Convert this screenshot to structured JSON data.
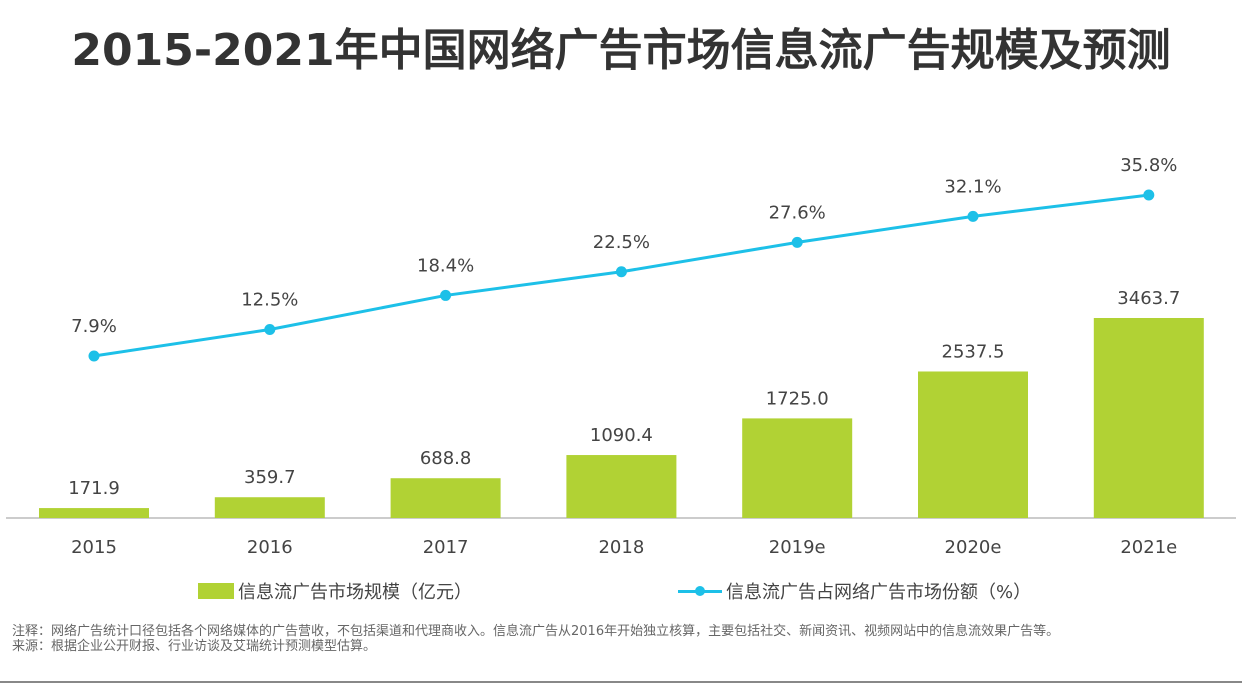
{
  "title": "2015-2021年中国网络广告市场信息流广告规模及预测",
  "chart_data": {
    "type": "bar+line",
    "title": "2015-2021年中国网络广告市场信息流广告规模及预测",
    "categories": [
      "2015",
      "2016",
      "2017",
      "2018",
      "2019e",
      "2020e",
      "2021e"
    ],
    "series": [
      {
        "name": "信息流广告市场规模（亿元）",
        "type": "bar",
        "color": "#b1d234",
        "values": [
          171.9,
          359.7,
          688.8,
          1090.4,
          1725.0,
          2537.5,
          3463.7
        ],
        "labels": [
          "171.9",
          "359.7",
          "688.8",
          "1090.4",
          "1725.0",
          "2537.5",
          "3463.7"
        ]
      },
      {
        "name": "信息流广告占网络广告市场份额（%）",
        "type": "line",
        "color": "#1dc0e8",
        "values": [
          7.9,
          12.5,
          18.4,
          22.5,
          27.6,
          32.1,
          35.8
        ],
        "labels": [
          "7.9%",
          "12.5%",
          "18.4%",
          "22.5%",
          "27.6%",
          "32.1%",
          "35.8%"
        ]
      }
    ],
    "grid": false,
    "legend": "bottom"
  },
  "notes": {
    "note": "注释：网络广告统计口径包括各个网络媒体的广告营收，不包括渠道和代理商收入。信息流广告从2016年开始独立核算，主要包括社交、新闻资讯、视频网站中的信息流效果广告等。",
    "source": "来源：根据企业公开财报、行业访谈及艾瑞统计预测模型估算。"
  }
}
